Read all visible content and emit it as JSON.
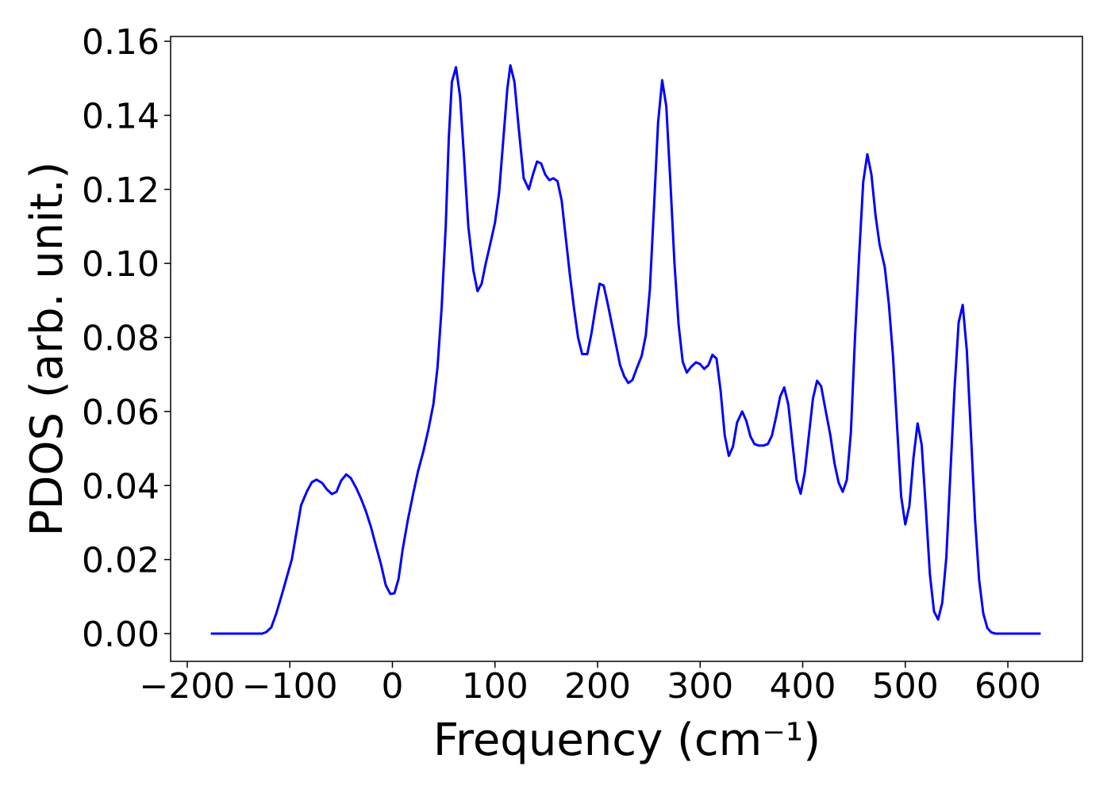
{
  "chart_data": {
    "type": "line",
    "x_label": "Frequency (cm⁻¹)",
    "y_label": "PDOS (arb. unit.)",
    "color": "#0000ff",
    "x": [
      -177,
      -127,
      -123,
      -118,
      -113,
      -108,
      -98,
      -89,
      -83,
      -78.5,
      -74,
      -68.5,
      -64,
      -59,
      -54.5,
      -50,
      -45,
      -40.5,
      -35,
      -30.5,
      -26,
      -21,
      -16.5,
      -11,
      -6.5,
      -2,
      2,
      6,
      10,
      15,
      20.5,
      25,
      30,
      35,
      40,
      44,
      48,
      52,
      55,
      58,
      62,
      66,
      70,
      74,
      79,
      83,
      87,
      91,
      96,
      100,
      104,
      108,
      112,
      115,
      119,
      123,
      128,
      133,
      137,
      141,
      145,
      149,
      153,
      157,
      161,
      165,
      169,
      173,
      177,
      181,
      185,
      190,
      194,
      198,
      202,
      206,
      210,
      214,
      218,
      222,
      226,
      230,
      234,
      238,
      243,
      247,
      251,
      255,
      259,
      263,
      267,
      271,
      275,
      279,
      283,
      287,
      291,
      296,
      300,
      304,
      308,
      312,
      316,
      320,
      324,
      328,
      332,
      336,
      341,
      345,
      349,
      353,
      357,
      362,
      366,
      370,
      374,
      378,
      382,
      386,
      390,
      394,
      398,
      402,
      406,
      410,
      414,
      418,
      422,
      427,
      431,
      435,
      439,
      443,
      447,
      451,
      455,
      459,
      463,
      467,
      471,
      475,
      480,
      484,
      488,
      492,
      496,
      500,
      504,
      508,
      512,
      516,
      520,
      524,
      528,
      532,
      536,
      540,
      544,
      548,
      552,
      556,
      560,
      564,
      568,
      572,
      576,
      580,
      584,
      588,
      632
    ],
    "values": [
      0,
      0,
      0.0004,
      0.0017,
      0.0056,
      0.0103,
      0.0201,
      0.0347,
      0.0386,
      0.0409,
      0.0416,
      0.0407,
      0.039,
      0.0377,
      0.0383,
      0.0413,
      0.043,
      0.042,
      0.0392,
      0.0364,
      0.0332,
      0.0289,
      0.0242,
      0.0186,
      0.0131,
      0.0107,
      0.0109,
      0.0148,
      0.0227,
      0.0306,
      0.0381,
      0.0439,
      0.049,
      0.055,
      0.062,
      0.072,
      0.088,
      0.11,
      0.134,
      0.149,
      0.153,
      0.145,
      0.128,
      0.11,
      0.098,
      0.0925,
      0.0945,
      0.1,
      0.106,
      0.111,
      0.119,
      0.133,
      0.147,
      0.1535,
      0.149,
      0.137,
      0.123,
      0.12,
      0.124,
      0.1275,
      0.127,
      0.124,
      0.1225,
      0.123,
      0.1222,
      0.117,
      0.107,
      0.097,
      0.088,
      0.08,
      0.0755,
      0.0755,
      0.081,
      0.088,
      0.0945,
      0.094,
      0.089,
      0.0835,
      0.078,
      0.0725,
      0.0695,
      0.0677,
      0.0685,
      0.0715,
      0.075,
      0.0805,
      0.093,
      0.115,
      0.138,
      0.1495,
      0.1425,
      0.122,
      0.1,
      0.0835,
      0.0735,
      0.0705,
      0.072,
      0.0733,
      0.0728,
      0.0715,
      0.0725,
      0.0753,
      0.0743,
      0.0655,
      0.0535,
      0.048,
      0.0505,
      0.057,
      0.06,
      0.0575,
      0.0533,
      0.0512,
      0.0508,
      0.0508,
      0.0512,
      0.0535,
      0.0585,
      0.064,
      0.0665,
      0.0618,
      0.0515,
      0.0415,
      0.0378,
      0.0435,
      0.0535,
      0.0635,
      0.0683,
      0.0668,
      0.0608,
      0.0535,
      0.046,
      0.0408,
      0.0383,
      0.0415,
      0.0545,
      0.08,
      0.102,
      0.122,
      0.1295,
      0.124,
      0.113,
      0.105,
      0.099,
      0.089,
      0.075,
      0.056,
      0.037,
      0.0295,
      0.0345,
      0.0475,
      0.0568,
      0.051,
      0.034,
      0.016,
      0.006,
      0.0038,
      0.0083,
      0.0205,
      0.0435,
      0.066,
      0.084,
      0.0888,
      0.0765,
      0.054,
      0.031,
      0.0145,
      0.0055,
      0.0015,
      0.0003,
      0,
      0
    ],
    "xlim": [
      -216.2,
      672.7
    ],
    "ylim": [
      -0.0075,
      0.1613
    ],
    "xticks": [
      {
        "value": -200,
        "label": "−200"
      },
      {
        "value": -100,
        "label": "−100"
      },
      0,
      100,
      200,
      300,
      400,
      500,
      600
    ],
    "yticks": [
      {
        "value": 0,
        "label": "0.00"
      },
      {
        "value": 0.02,
        "label": "0.02"
      },
      {
        "value": 0.04,
        "label": "0.04"
      },
      {
        "value": 0.06,
        "label": "0.06"
      },
      {
        "value": 0.08,
        "label": "0.08"
      },
      {
        "value": 0.1,
        "label": "0.10"
      },
      {
        "value": 0.12,
        "label": "0.12"
      },
      {
        "value": 0.14,
        "label": "0.14"
      },
      {
        "value": 0.16,
        "label": "0.16"
      }
    ],
    "grid": false
  }
}
